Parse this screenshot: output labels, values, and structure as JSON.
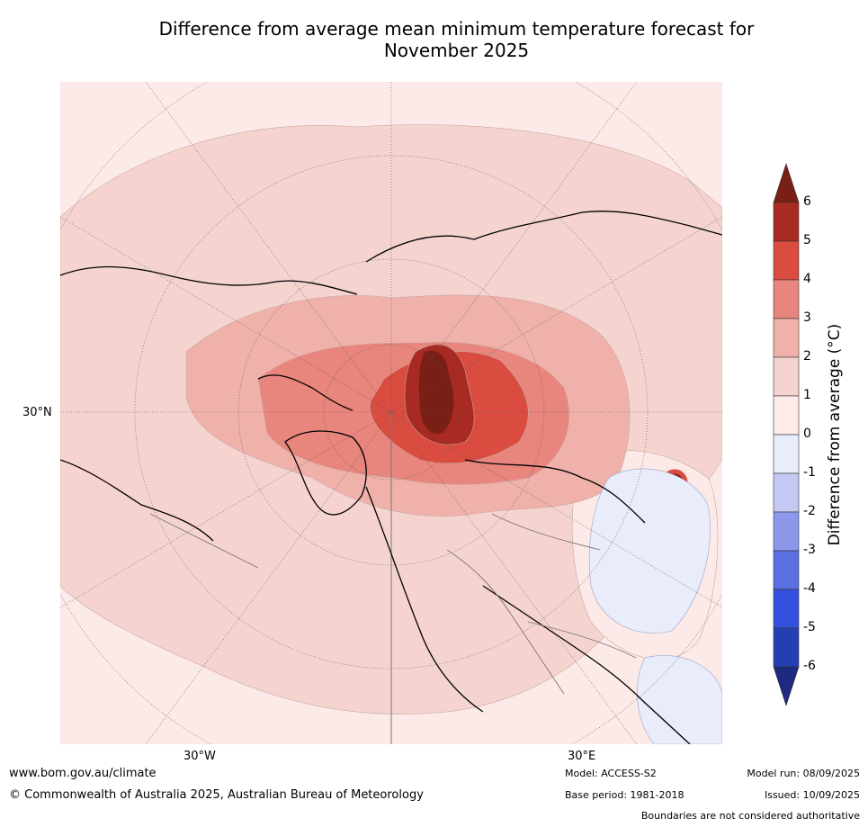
{
  "title": "Difference from average mean minimum temperature forecast for November 2025",
  "title_line1": "Difference from average mean minimum temperature forecast for",
  "title_line2": "November 2025",
  "map": {
    "projection": "north polar stereographic",
    "lat_label": "30°N",
    "lon_labels": [
      "30°W",
      "30°E"
    ]
  },
  "colorbar": {
    "label": "Difference from average ($^\\circ$C)",
    "label_display": "Difference from average (°C)",
    "ticks": [
      "6",
      "5",
      "4",
      "3",
      "2",
      "1",
      "0",
      "-1",
      "-2",
      "-3",
      "-4",
      "-5",
      "-6"
    ],
    "levels": [
      {
        "range": ">6",
        "color": "#7a1f16"
      },
      {
        "range": "5 to 6",
        "color": "#a82a22"
      },
      {
        "range": "4 to 5",
        "color": "#d94c3f"
      },
      {
        "range": "3 to 4",
        "color": "#e8857c"
      },
      {
        "range": "2 to 3",
        "color": "#efb1aa"
      },
      {
        "range": "1 to 2",
        "color": "#f5d4d0"
      },
      {
        "range": "0 to 1",
        "color": "#fcebe8"
      },
      {
        "range": "-1 to 0",
        "color": "#e8ecfb"
      },
      {
        "range": "-2 to -1",
        "color": "#c3c9f3"
      },
      {
        "range": "-3 to -2",
        "color": "#8c98ec"
      },
      {
        "range": "-4 to -3",
        "color": "#5c6fe2"
      },
      {
        "range": "-5 to -4",
        "color": "#3450de"
      },
      {
        "range": "-6 to -5",
        "color": "#243fb2"
      },
      {
        "range": "<-6",
        "color": "#1d2a7e"
      }
    ]
  },
  "footer": {
    "url": "www.bom.gov.au/climate",
    "copyright": "© Commonwealth of Australia 2025, Australian Bureau of Meteorology",
    "model": "Model: ACCESS-S2",
    "base_period": "Base period: 1981-2018",
    "model_run": "Model run: 08/09/2025",
    "issued": "Issued: 10/09/2025",
    "boundaries": "Boundaries are not considered authoritative"
  }
}
